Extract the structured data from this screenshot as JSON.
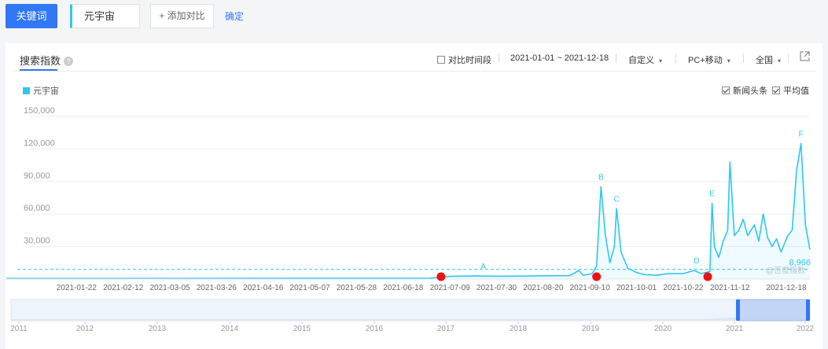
{
  "toolbar": {
    "keyword_button": "关键词",
    "keyword_value": "元宇宙",
    "add_compare": "+ 添加对比",
    "confirm": "确定"
  },
  "panel": {
    "title": "搜索指数",
    "help": "?",
    "compare_period": "对比时间段",
    "date_range": "2021-01-01 ~ 2021-12-18",
    "custom": "自定义",
    "device": "PC+移动",
    "region": "全国",
    "news_headline": "新闻头条",
    "average": "平均值",
    "legend_label": "元宇宙",
    "watermark": "@百度指数",
    "avg_label": "8,966"
  },
  "colors": {
    "accent": "#3177f6",
    "series": "#2ec7f0",
    "marker": "#ee1111"
  },
  "chart_data": {
    "type": "area",
    "series": [
      {
        "name": "元宇宙"
      }
    ],
    "yticks": [
      "150,000",
      "120,000",
      "90,000",
      "60,000",
      "30,000"
    ],
    "ytick_values": [
      150000,
      120000,
      90000,
      60000,
      30000
    ],
    "ylim": [
      0,
      150000
    ],
    "xticks": [
      "2021-01-22",
      "2021-02-12",
      "2021-03-05",
      "2021-03-26",
      "2021-04-16",
      "2021-05-07",
      "2021-05-28",
      "2021-06-18",
      "2021-07-09",
      "2021-07-30",
      "2021-08-20",
      "2021-09-10",
      "2021-10-01",
      "2021-10-22",
      "2021-11-12",
      "2021-12-18"
    ],
    "average": 8966,
    "points": [
      [
        "2021-01-01",
        500
      ],
      [
        "2021-06-30",
        700
      ],
      [
        "2021-07-09",
        2500
      ],
      [
        "2021-07-20",
        2800
      ],
      [
        "2021-08-01",
        2600
      ],
      [
        "2021-08-20",
        3000
      ],
      [
        "2021-09-01",
        3200
      ],
      [
        "2021-09-05",
        8000
      ],
      [
        "2021-09-07",
        3500
      ],
      [
        "2021-09-11",
        5000
      ],
      [
        "2021-09-13",
        12000
      ],
      [
        "2021-09-15",
        85000
      ],
      [
        "2021-09-17",
        40000
      ],
      [
        "2021-09-19",
        15000
      ],
      [
        "2021-09-21",
        30000
      ],
      [
        "2021-09-22",
        65000
      ],
      [
        "2021-09-24",
        25000
      ],
      [
        "2021-09-27",
        10000
      ],
      [
        "2021-10-01",
        6000
      ],
      [
        "2021-10-05",
        4000
      ],
      [
        "2021-10-10",
        3500
      ],
      [
        "2021-10-15",
        5000
      ],
      [
        "2021-10-22",
        5000
      ],
      [
        "2021-10-27",
        8000
      ],
      [
        "2021-10-30",
        5000
      ],
      [
        "2021-11-03",
        7000
      ],
      [
        "2021-11-04",
        70000
      ],
      [
        "2021-11-05",
        30000
      ],
      [
        "2021-11-07",
        20000
      ],
      [
        "2021-11-09",
        35000
      ],
      [
        "2021-11-11",
        45000
      ],
      [
        "2021-11-12",
        108000
      ],
      [
        "2021-11-14",
        40000
      ],
      [
        "2021-11-16",
        45000
      ],
      [
        "2021-11-18",
        55000
      ],
      [
        "2021-11-20",
        40000
      ],
      [
        "2021-11-23",
        50000
      ],
      [
        "2021-11-25",
        35000
      ],
      [
        "2021-11-27",
        60000
      ],
      [
        "2021-11-29",
        38000
      ],
      [
        "2021-12-01",
        30000
      ],
      [
        "2021-12-03",
        37000
      ],
      [
        "2021-12-05",
        25000
      ],
      [
        "2021-12-08",
        40000
      ],
      [
        "2021-12-10",
        45000
      ],
      [
        "2021-12-12",
        100000
      ],
      [
        "2021-12-14",
        125000
      ],
      [
        "2021-12-16",
        50000
      ],
      [
        "2021-12-18",
        27000
      ]
    ],
    "annotations": [
      {
        "label": "A",
        "date": "2021-07-24"
      },
      {
        "label": "B",
        "date": "2021-09-15"
      },
      {
        "label": "C",
        "date": "2021-09-22"
      },
      {
        "label": "D",
        "date": "2021-10-28"
      },
      {
        "label": "E",
        "date": "2021-11-04"
      },
      {
        "label": "F",
        "date": "2021-12-14"
      }
    ],
    "markers": [
      "2021-07-05",
      "2021-09-13",
      "2021-11-02"
    ],
    "overview_years": [
      "2011",
      "2012",
      "2013",
      "2014",
      "2015",
      "2016",
      "2017",
      "2018",
      "2019",
      "2020",
      "2021",
      "2022"
    ]
  }
}
